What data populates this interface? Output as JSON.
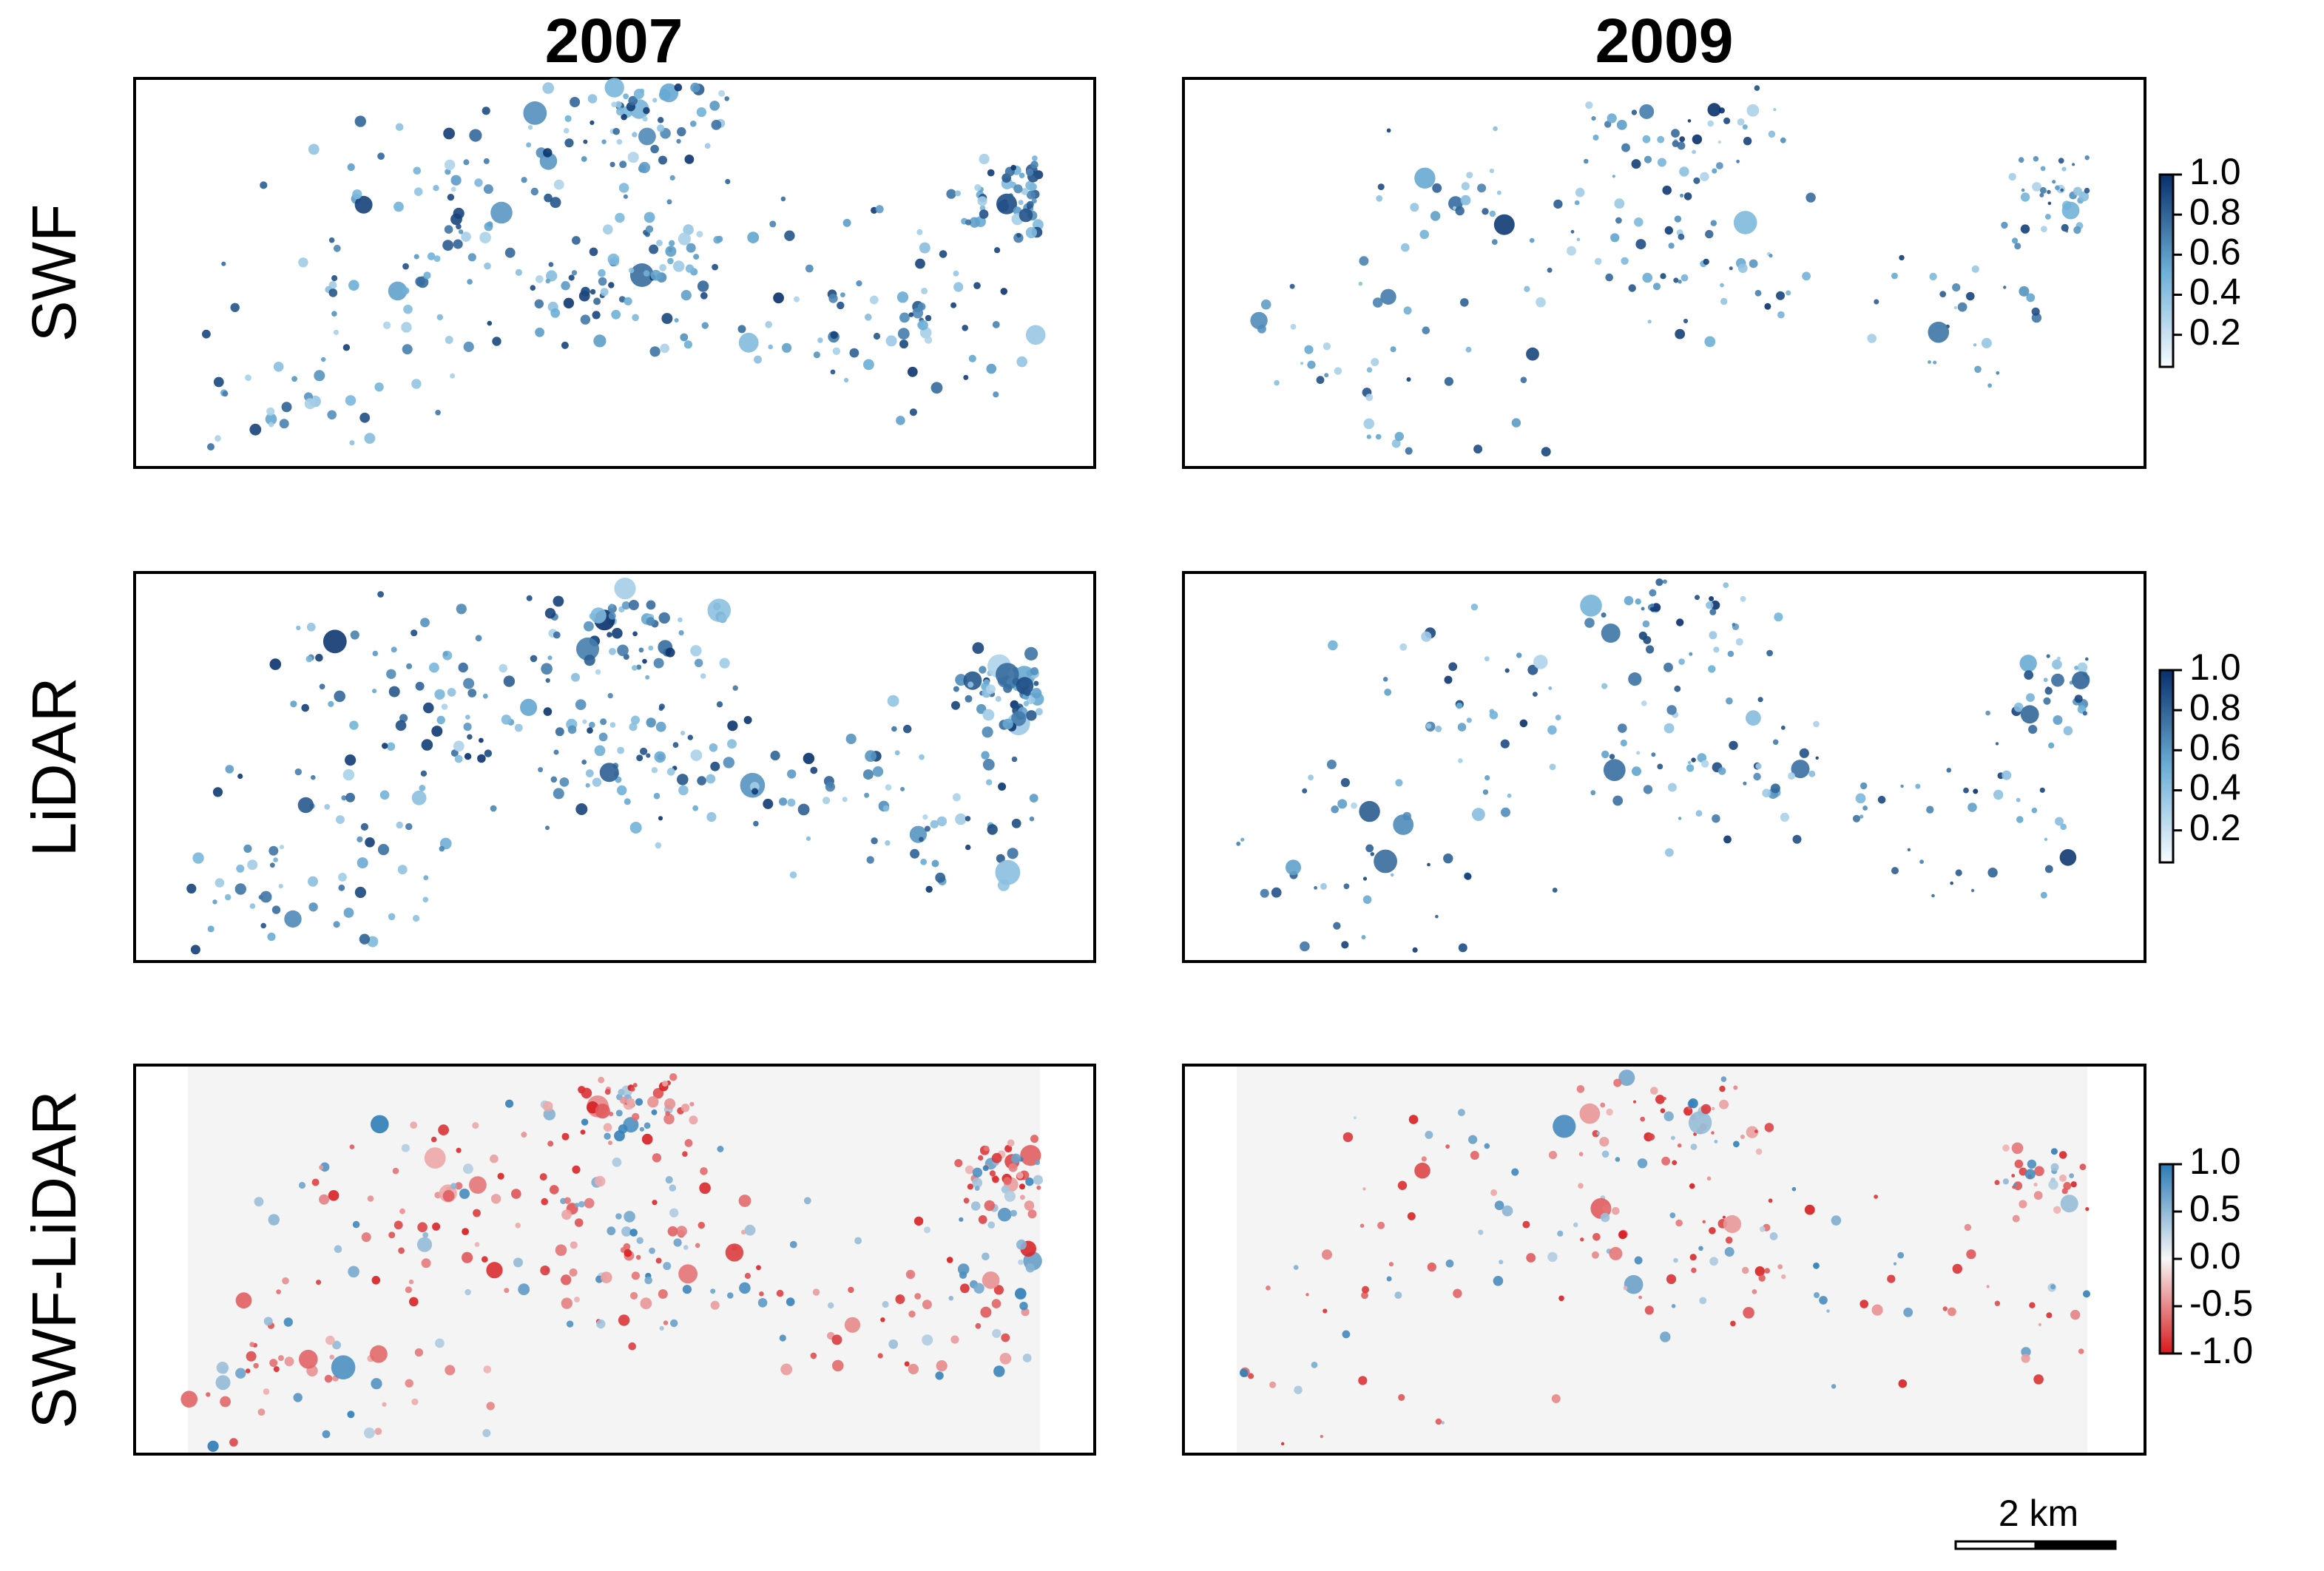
{
  "columns": [
    "2007",
    "2009"
  ],
  "rows": [
    "SWF",
    "LiDAR",
    "SWF-LiDAR"
  ],
  "colorbars": [
    {
      "lim": [
        0.04,
        1
      ],
      "colors": [
        "#f7fbff",
        "#6baed6",
        "#08306b"
      ],
      "ticks": [
        {
          "value": 1,
          "label": "1.0"
        },
        0.8,
        0.6,
        0.4,
        0.2
      ]
    },
    {
      "lim": [
        0.04,
        1
      ],
      "colors": [
        "#f7fbff",
        "#6baed6",
        "#08306b"
      ],
      "ticks": [
        {
          "value": 1,
          "label": "1.0"
        },
        0.8,
        0.6,
        0.4,
        0.2
      ]
    },
    {
      "lim": [
        -1,
        1
      ],
      "colors": [
        "#d7191c",
        "#f7f7f7",
        "#2c7bb6"
      ],
      "ticks": [
        {
          "value": 1,
          "label": "1.0"
        },
        0.5,
        {
          "value": 0,
          "label": "0.0"
        },
        -0.5,
        {
          "value": -1,
          "label": "-1.0"
        }
      ]
    }
  ],
  "scale_bar": "2 km"
}
